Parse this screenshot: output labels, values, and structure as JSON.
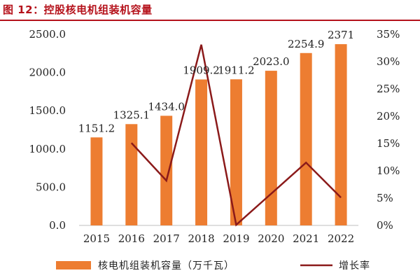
{
  "figure": {
    "title": "图 12：控股核电机组装机容量"
  },
  "chart_data": {
    "type": "bar",
    "categories": [
      "2015",
      "2016",
      "2017",
      "2018",
      "2019",
      "2020",
      "2021",
      "2022"
    ],
    "series": [
      {
        "name": "核电机组装机容量（万千瓦）",
        "type": "bar",
        "axis": "left",
        "values": [
          1151.2,
          1325.1,
          1434.0,
          1909.2,
          1911.2,
          2023.0,
          2254.9,
          2371
        ],
        "labels": [
          "1151.2",
          "1325.1",
          "1434.0",
          "1909.2",
          "1911.2",
          "2023.0",
          "2254.9",
          "2371"
        ],
        "color": "#ed7d31"
      },
      {
        "name": "增长率",
        "type": "line",
        "axis": "right",
        "values": [
          null,
          15.1,
          8.2,
          33.1,
          0.1,
          5.8,
          11.5,
          5.1
        ],
        "color": "#8b1a1a"
      }
    ],
    "y_left": {
      "min": 0,
      "max": 2500,
      "step": 500,
      "tick_labels": [
        "0.0",
        "500.0",
        "1000.0",
        "1500.0",
        "2000.0",
        "2500.0"
      ]
    },
    "y_right": {
      "min": 0,
      "max": 35,
      "step": 5,
      "tick_labels": [
        "0%",
        "5%",
        "10%",
        "15%",
        "20%",
        "25%",
        "30%",
        "35%"
      ]
    },
    "grid": false,
    "legend_position": "bottom"
  }
}
